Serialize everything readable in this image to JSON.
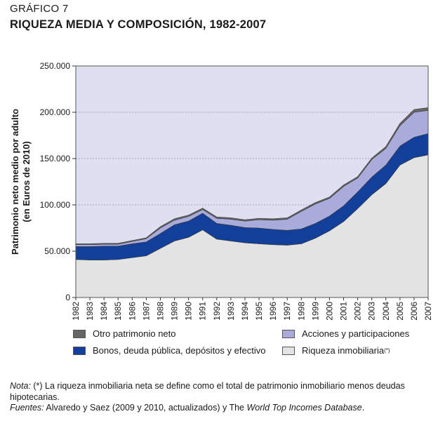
{
  "header": {
    "kicker": "GRÁFICO 7",
    "title": "RIQUEZA MEDIA Y COMPOSICIÓN, 1982-2007"
  },
  "chart_data": {
    "type": "area",
    "stacked": true,
    "title": "RIQUEZA MEDIA Y COMPOSICIÓN, 1982-2007",
    "xlabel": "",
    "ylabel": [
      "Patrimonio neto medio por adulto",
      "(en Euros de 2010)"
    ],
    "ylim": [
      0,
      250000
    ],
    "yticks": [
      0,
      50000,
      100000,
      150000,
      200000,
      250000
    ],
    "ytick_labels": [
      "0",
      "50.000",
      "100.000",
      "150.000",
      "200.000",
      "250.000"
    ],
    "grid": true,
    "categories": [
      "1982",
      "1983",
      "1984",
      "1985",
      "1986",
      "1987",
      "1988",
      "1989",
      "1990",
      "1991",
      "1992",
      "1993",
      "1994",
      "1995",
      "1996",
      "1997",
      "1998",
      "1999",
      "2000",
      "2001",
      "2002",
      "2003",
      "2004",
      "2005",
      "2006",
      "2007"
    ],
    "series": [
      {
        "name": "Riqueza inmobiliaria",
        "superscript": "(*)",
        "color": "#e3e3e3",
        "values": [
          41000,
          40500,
          40500,
          41000,
          43000,
          45000,
          53000,
          61000,
          65000,
          73000,
          63000,
          61000,
          59000,
          58000,
          57000,
          56500,
          58000,
          64000,
          72000,
          82000,
          96000,
          111000,
          123000,
          143000,
          151000,
          154000
        ]
      },
      {
        "name": "Bonos, deuda pública, depósitos y efectivo",
        "color": "#123f9a",
        "values": [
          14000,
          14500,
          15000,
          14500,
          15000,
          15000,
          16000,
          17500,
          17500,
          18000,
          17000,
          17000,
          16500,
          17000,
          16500,
          16000,
          16000,
          16000,
          16000,
          17000,
          18000,
          19000,
          20000,
          20500,
          22000,
          23000
        ]
      },
      {
        "name": "Acciones y participaciones",
        "color": "#a9acdb",
        "values": [
          2000,
          2000,
          2000,
          2000,
          2500,
          3500,
          6000,
          5000,
          5000,
          4000,
          5500,
          6500,
          7000,
          9000,
          10000,
          12000,
          19000,
          21000,
          19000,
          21000,
          15000,
          19000,
          18000,
          22000,
          27000,
          25000
        ]
      },
      {
        "name": "Otro patrimonio neto",
        "color": "#666666",
        "values": [
          1000,
          1000,
          1000,
          1000,
          1000,
          1000,
          1500,
          1500,
          1500,
          1500,
          1500,
          1500,
          1500,
          1500,
          1500,
          1500,
          1500,
          1500,
          1500,
          1500,
          1500,
          1500,
          2000,
          2500,
          3000,
          3000
        ]
      }
    ],
    "plot_background": "#dedff0",
    "legend_position": "bottom"
  },
  "legend": {
    "items": [
      {
        "label": "Otro patrimonio neto",
        "color": "#666666"
      },
      {
        "label": "Acciones y participaciones",
        "color": "#a9acdb"
      },
      {
        "label": "Bonos, deuda pública, depósitos y efectivo",
        "color": "#123f9a"
      },
      {
        "label": "Riqueza inmobiliaria",
        "sup": "(*)",
        "color": "#e3e3e3"
      }
    ]
  },
  "notes": {
    "nota_label": "Nota:",
    "nota_text": " (*) La riqueza inmobiliaria neta se define como el total de patrimonio inmobiliario menos deudas hipotecarias.",
    "fuentes_label": "Fuentes:",
    "fuentes_text": " Alvaredo y Saez (2009 y 2010, actualizados) y The ",
    "fuentes_italic": "World Top Incomes Database",
    "fuentes_end": "."
  }
}
